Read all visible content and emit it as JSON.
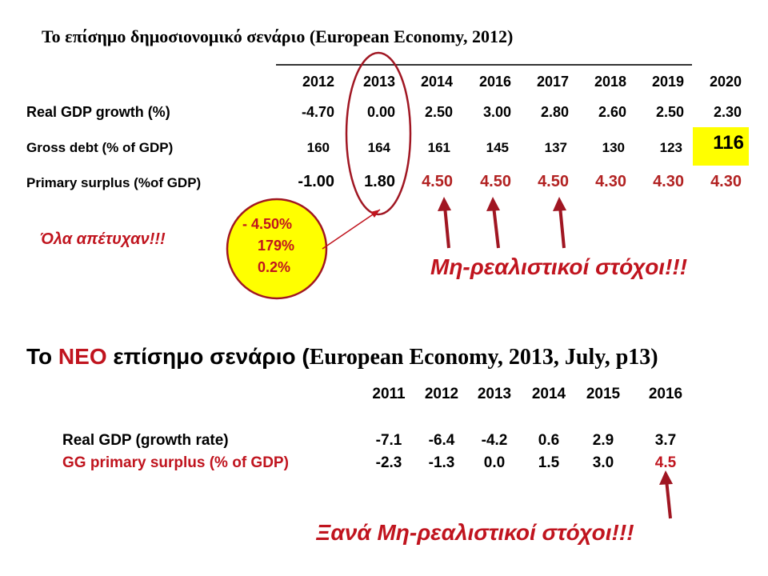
{
  "title1": "Το επίσημο δημοσιονομικό σενάριο (European Economy, 2012)",
  "table1": {
    "years": [
      "2012",
      "2013",
      "2014",
      "2016",
      "2017",
      "2018",
      "2019",
      "2020"
    ],
    "rows": [
      {
        "label": "Real GDP growth (%)",
        "values": [
          "-4.70",
          "0.00",
          "2.50",
          "3.00",
          "2.80",
          "2.60",
          "2.50",
          "2.30"
        ]
      },
      {
        "label": "Gross debt (% of GDP)",
        "values": [
          "160",
          "164",
          "161",
          "145",
          "137",
          "130",
          "123",
          "116"
        ]
      },
      {
        "label": "Primary surplus (%of GDP)",
        "values": [
          "-1.00",
          "1.80",
          "4.50",
          "4.50",
          "4.50",
          "4.30",
          "4.30",
          "4.30"
        ]
      }
    ],
    "highlight_color": "#ffff00"
  },
  "annotations": {
    "ola_failed": "Όλα απέτυχαν!!!",
    "bubble": [
      "- 4.50%",
      "179%",
      "0.2%"
    ],
    "unrealistic_targets": "Μη-ρεαλιστικοί στόχοι!!!",
    "again_unrealistic": "Ξανά Μη-ρεαλιστικοί στόχοι!!!"
  },
  "title2": {
    "part1": "Το ",
    "neo": "ΝΕΟ",
    "part2": " επίσημο σενάριο (",
    "part3": "European Economy, 2013, July, p13)"
  },
  "table2": {
    "years": [
      "2011",
      "2012",
      "2013",
      "2014",
      "2015",
      "2016"
    ],
    "rows": [
      {
        "label": "Real GDP (growth rate)",
        "values": [
          "-7.1",
          "-6.4",
          "-4.2",
          "0.6",
          "2.9",
          "3.7"
        ]
      },
      {
        "label": "GG primary surplus (% of GDP)",
        "values": [
          "-2.3",
          "-1.3",
          "0.0",
          "1.5",
          "3.0",
          "4.5"
        ]
      }
    ]
  },
  "colors": {
    "accent_red": "#c0141e",
    "dark_red": "#b22222",
    "bubble_fill": "#ffff00"
  }
}
